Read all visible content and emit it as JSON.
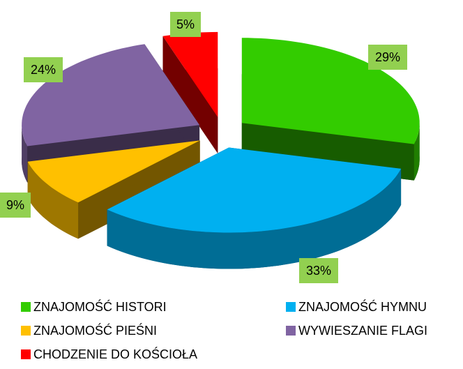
{
  "chart_data": {
    "type": "pie",
    "categories": [
      "ZNAJOMOŚĆ HISTORI",
      "ZNAJOMOŚĆ HYMNU",
      "ZNAJOMOŚĆ PIEŚNI",
      "WYWIESZANIE FLAGI",
      "CHODZENIE DO KOŚCIOŁA"
    ],
    "values": [
      29,
      33,
      9,
      24,
      5
    ],
    "value_labels": [
      "29%",
      "33%",
      "9%",
      "24%",
      "5%"
    ],
    "colors": [
      "#33cc00",
      "#00b0f0",
      "#ffc000",
      "#8064a2",
      "#ff0000"
    ]
  }
}
